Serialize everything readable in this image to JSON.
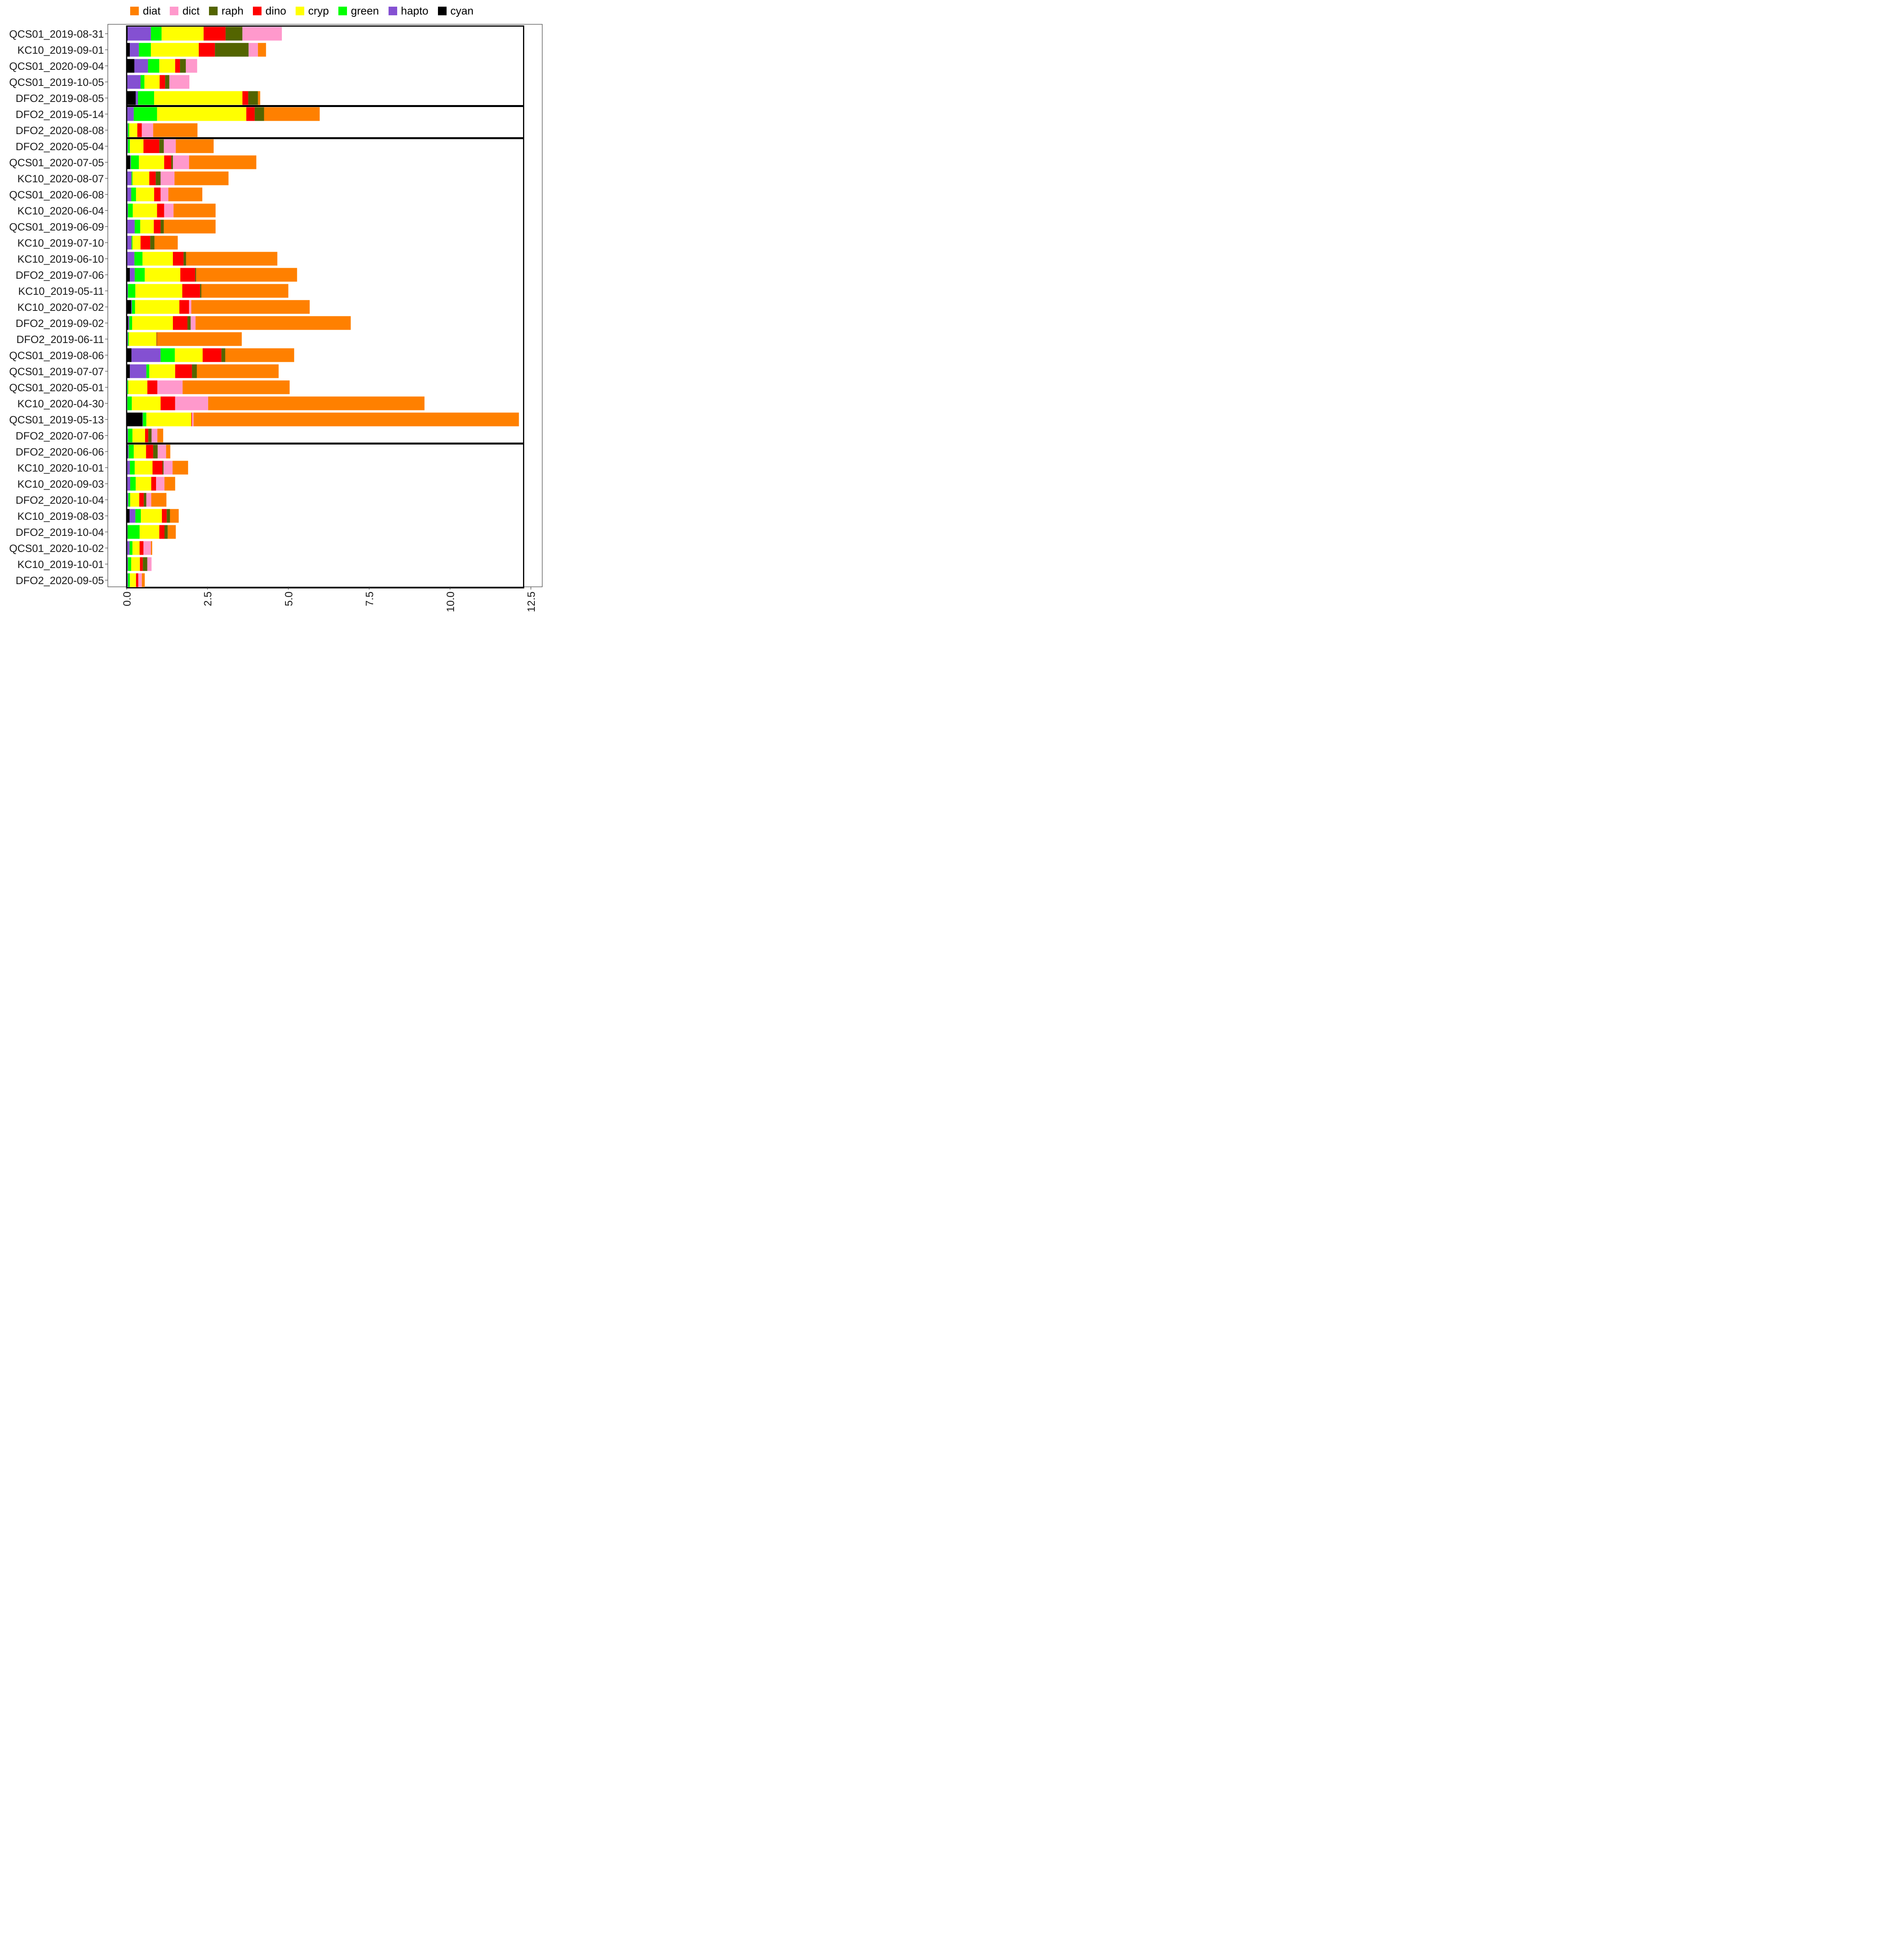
{
  "chart_data": {
    "type": "bar",
    "orientation": "horizontal",
    "stacked": true,
    "title": "",
    "xlabel": "",
    "ylabel": "",
    "xlim": [
      0,
      12.5
    ],
    "xticks": [
      "0.0",
      "2.5",
      "5.0",
      "7.5",
      "10.0",
      "12.5"
    ],
    "xtick_values": [
      0,
      2.5,
      5,
      7.5,
      10,
      12.5
    ],
    "legend_position": "top",
    "categories": [
      "QCS01_2019-08-31",
      "KC10_2019-09-01",
      "QCS01_2020-09-04",
      "QCS01_2019-10-05",
      "DFO2_2019-08-05",
      "DFO2_2019-05-14",
      "DFO2_2020-08-08",
      "DFO2_2020-05-04",
      "QCS01_2020-07-05",
      "KC10_2020-08-07",
      "QCS01_2020-06-08",
      "KC10_2020-06-04",
      "QCS01_2019-06-09",
      "KC10_2019-07-10",
      "KC10_2019-06-10",
      "DFO2_2019-07-06",
      "KC10_2019-05-11",
      "KC10_2020-07-02",
      "DFO2_2019-09-02",
      "DFO2_2019-06-11",
      "QCS01_2019-08-06",
      "QCS01_2019-07-07",
      "QCS01_2020-05-01",
      "KC10_2020-04-30",
      "QCS01_2019-05-13",
      "DFO2_2020-07-06",
      "DFO2_2020-06-06",
      "KC10_2020-10-01",
      "KC10_2020-09-03",
      "DFO2_2020-10-04",
      "KC10_2019-08-03",
      "DFO2_2019-10-04",
      "QCS01_2020-10-02",
      "KC10_2019-10-01",
      "DFO2_2020-09-05"
    ],
    "series": [
      {
        "name": "cyan",
        "color": "#000000",
        "values": [
          0.03,
          0.1,
          0.24,
          0.02,
          0.28,
          0.02,
          0.02,
          0.02,
          0.11,
          0.02,
          0.02,
          0.02,
          0.02,
          0.02,
          0.02,
          0.1,
          0.02,
          0.14,
          0.05,
          0.02,
          0.15,
          0.1,
          0.01,
          0.01,
          0.49,
          0.02,
          0.03,
          0.02,
          0.02,
          0.02,
          0.09,
          0.02,
          0.02,
          0.02,
          0.02
        ]
      },
      {
        "name": "hapto",
        "color": "#8450d2",
        "values": [
          0.72,
          0.28,
          0.42,
          0.41,
          0.07,
          0.2,
          0.02,
          0.02,
          0.02,
          0.13,
          0.12,
          0.02,
          0.23,
          0.13,
          0.22,
          0.15,
          0.02,
          0.02,
          0.03,
          0.02,
          0.9,
          0.51,
          0.01,
          0.01,
          0.01,
          0.02,
          0.03,
          0.08,
          0.09,
          0.03,
          0.18,
          0.01,
          0.07,
          0.02,
          0.02
        ]
      },
      {
        "name": "green",
        "color": "#00ff00",
        "values": [
          0.33,
          0.37,
          0.35,
          0.12,
          0.5,
          0.72,
          0.04,
          0.06,
          0.25,
          0.03,
          0.15,
          0.15,
          0.17,
          0.03,
          0.25,
          0.31,
          0.23,
          0.1,
          0.09,
          0.03,
          0.44,
          0.09,
          0.03,
          0.14,
          0.11,
          0.14,
          0.16,
          0.15,
          0.17,
          0.06,
          0.17,
          0.37,
          0.09,
          0.1,
          0.06
        ]
      },
      {
        "name": "cryp",
        "color": "#ffff00",
        "values": [
          1.3,
          1.48,
          0.49,
          0.47,
          2.73,
          2.76,
          0.25,
          0.42,
          0.78,
          0.52,
          0.56,
          0.75,
          0.42,
          0.25,
          0.94,
          1.1,
          1.45,
          1.37,
          1.26,
          0.85,
          0.86,
          0.8,
          0.59,
          0.89,
          1.39,
          0.39,
          0.38,
          0.55,
          0.48,
          0.28,
          0.65,
          0.61,
          0.22,
          0.27,
          0.19
        ]
      },
      {
        "name": "dino",
        "color": "#ff0000",
        "values": [
          0.68,
          0.5,
          0.15,
          0.17,
          0.18,
          0.26,
          0.14,
          0.49,
          0.22,
          0.2,
          0.2,
          0.22,
          0.21,
          0.3,
          0.33,
          0.46,
          0.55,
          0.3,
          0.45,
          0.01,
          0.58,
          0.52,
          0.31,
          0.45,
          0.02,
          0.1,
          0.22,
          0.31,
          0.15,
          0.14,
          0.15,
          0.16,
          0.12,
          0.09,
          0.07
        ]
      },
      {
        "name": "raph",
        "color": "#536400",
        "values": [
          0.52,
          1.04,
          0.18,
          0.13,
          0.3,
          0.29,
          0.0,
          0.14,
          0.05,
          0.15,
          0.0,
          0.0,
          0.1,
          0.13,
          0.08,
          0.03,
          0.04,
          0.0,
          0.1,
          0.01,
          0.12,
          0.15,
          0.0,
          0.0,
          0.0,
          0.1,
          0.14,
          0.03,
          0.0,
          0.08,
          0.1,
          0.1,
          0.0,
          0.14,
          0.0
        ]
      },
      {
        "name": "dict",
        "color": "#ff99cc",
        "values": [
          1.22,
          0.29,
          0.35,
          0.62,
          0.0,
          0.0,
          0.35,
          0.37,
          0.5,
          0.43,
          0.24,
          0.29,
          0.0,
          0.0,
          0.0,
          0.0,
          0.0,
          0.07,
          0.15,
          0.0,
          0.0,
          0.0,
          0.78,
          1.02,
          0.05,
          0.18,
          0.26,
          0.28,
          0.26,
          0.15,
          0.0,
          0.0,
          0.23,
          0.13,
          0.11
        ]
      },
      {
        "name": "diat",
        "color": "#ff8000",
        "values": [
          0.0,
          0.25,
          0.0,
          0.0,
          0.07,
          1.72,
          1.37,
          1.17,
          2.08,
          1.67,
          1.05,
          1.3,
          1.6,
          0.72,
          2.82,
          3.12,
          2.69,
          3.66,
          4.8,
          2.62,
          2.13,
          2.53,
          3.31,
          6.69,
          10.06,
          0.18,
          0.13,
          0.48,
          0.33,
          0.47,
          0.27,
          0.25,
          0.04,
          0.0,
          0.09
        ]
      }
    ],
    "group_separators_after": [
      4,
      6,
      25
    ]
  }
}
